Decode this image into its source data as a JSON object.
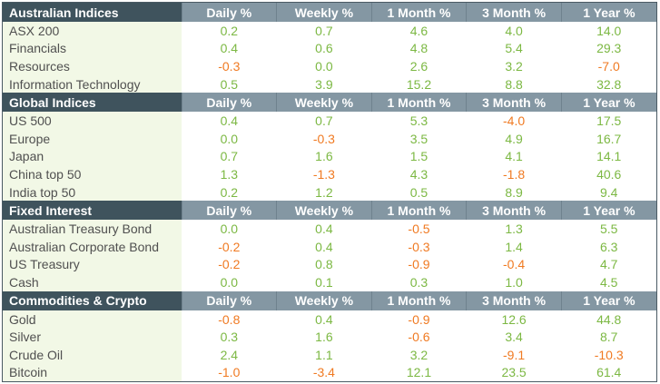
{
  "columns": [
    "Daily %",
    "Weekly %",
    "1 Month %",
    "3 Month %",
    "1 Year %"
  ],
  "colors": {
    "positive": "#7cb843",
    "negative": "#f07a22",
    "header_bg": "#3f535d",
    "header_col_bg": "#8497a3",
    "name_bg": "#f2f8e6"
  },
  "sections": [
    {
      "title": "Australian Indices",
      "rows": [
        {
          "name": "ASX 200",
          "values": [
            "0.2",
            "0.7",
            "4.6",
            "4.0",
            "14.0"
          ]
        },
        {
          "name": "Financials",
          "values": [
            "0.4",
            "0.6",
            "4.8",
            "5.4",
            "29.3"
          ]
        },
        {
          "name": "Resources",
          "values": [
            "-0.3",
            "0.0",
            "2.6",
            "3.2",
            "-7.0"
          ]
        },
        {
          "name": "Information Technology",
          "values": [
            "0.5",
            "3.9",
            "15.2",
            "8.8",
            "32.8"
          ]
        }
      ]
    },
    {
      "title": "Global Indices",
      "rows": [
        {
          "name": "US 500",
          "values": [
            "0.4",
            "0.7",
            "5.3",
            "-4.0",
            "17.5"
          ]
        },
        {
          "name": "Europe",
          "values": [
            "0.0",
            "-0.3",
            "3.5",
            "4.9",
            "16.7"
          ]
        },
        {
          "name": "Japan",
          "values": [
            "0.7",
            "1.6",
            "1.5",
            "4.1",
            "14.1"
          ]
        },
        {
          "name": "China top 50",
          "values": [
            "1.3",
            "-1.3",
            "4.3",
            "-1.8",
            "40.6"
          ]
        },
        {
          "name": "India top 50",
          "values": [
            "0.2",
            "1.2",
            "0.5",
            "8.9",
            "9.4"
          ]
        }
      ]
    },
    {
      "title": "Fixed Interest",
      "rows": [
        {
          "name": "Australian Treasury Bond",
          "values": [
            "0.0",
            "0.4",
            "-0.5",
            "1.3",
            "5.5"
          ]
        },
        {
          "name": "Australian Corporate Bond",
          "values": [
            "-0.2",
            "0.4",
            "-0.3",
            "1.4",
            "6.3"
          ]
        },
        {
          "name": "US Treasury",
          "values": [
            "-0.2",
            "0.8",
            "-0.9",
            "-0.4",
            "4.7"
          ]
        },
        {
          "name": "Cash",
          "values": [
            "0.0",
            "0.1",
            "0.3",
            "1.0",
            "4.5"
          ]
        }
      ]
    },
    {
      "title": "Commodities & Crypto",
      "rows": [
        {
          "name": "Gold",
          "values": [
            "-0.8",
            "0.4",
            "-0.9",
            "12.6",
            "44.8"
          ]
        },
        {
          "name": "Silver",
          "values": [
            "0.3",
            "1.6",
            "-0.6",
            "3.4",
            "8.7"
          ]
        },
        {
          "name": "Crude Oil",
          "values": [
            "2.4",
            "1.1",
            "3.2",
            "-9.1",
            "-10.3"
          ]
        },
        {
          "name": "Bitcoin",
          "values": [
            "-1.0",
            "-3.4",
            "12.1",
            "23.5",
            "61.4"
          ]
        }
      ]
    }
  ]
}
